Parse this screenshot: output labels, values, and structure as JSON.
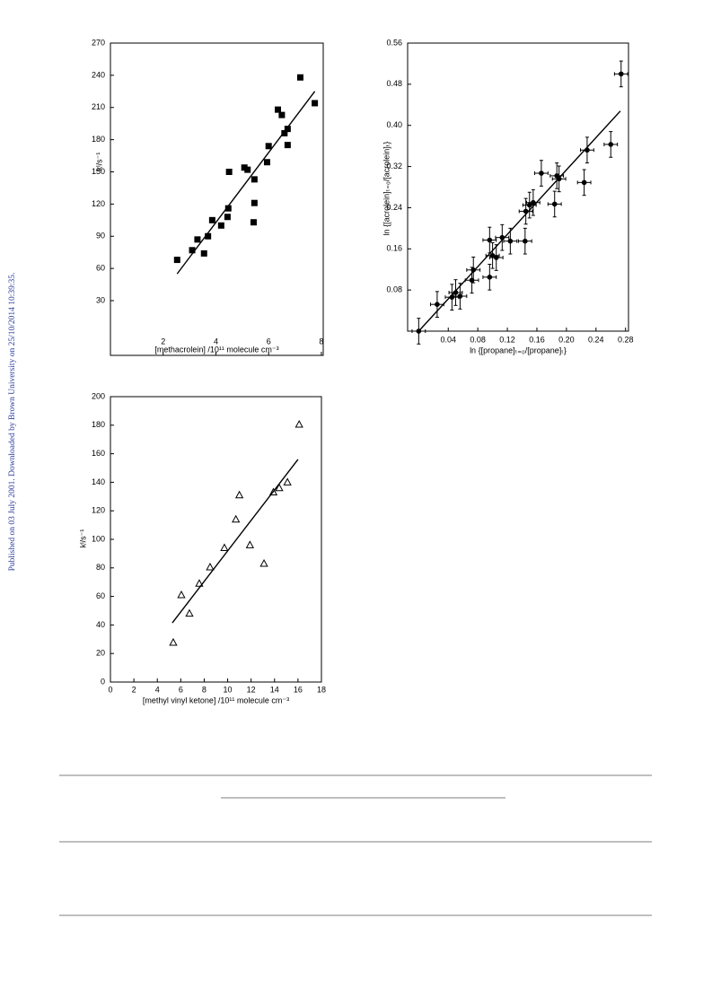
{
  "side_note": "Published on 03 July 2001. Downloaded by Brown University on 25/10/2014 10:39:35.",
  "chart_data": [
    {
      "type": "scatter",
      "marker": "square",
      "color": "#000000",
      "x_label": "[methacrolein] /10¹¹ molecule cm⁻³",
      "y_label": "kᴵ/s⁻¹",
      "x": [
        2.53,
        3.1,
        3.3,
        3.55,
        3.7,
        3.86,
        4.2,
        4.44,
        4.47,
        4.5,
        5.08,
        5.2,
        5.46,
        5.46,
        5.43,
        5.94,
        6.0,
        6.35,
        6.5,
        6.6,
        6.72,
        6.72,
        7.2,
        7.75
      ],
      "values": [
        68,
        77,
        87,
        74,
        90,
        105,
        100,
        108,
        116,
        150,
        154,
        152,
        143,
        121,
        103,
        159,
        174,
        208,
        203,
        186,
        190,
        175,
        238,
        214
      ],
      "fit": {
        "x": [
          2.53,
          7.75
        ],
        "y": [
          55,
          225
        ]
      },
      "xlim": [
        0,
        8.07
      ],
      "ylim": [
        -21,
        270
      ],
      "xticks": [
        2,
        4,
        6,
        8
      ],
      "yticks": [
        30,
        60,
        90,
        120,
        150,
        180,
        210,
        240,
        270
      ]
    },
    {
      "type": "scatter",
      "marker": "circle",
      "color": "#000000",
      "x_label": "ln {[propane]ₜ₌₀/[propane]ₜ}",
      "y_label": "ln {[acrolein]ₜ₌₀/[acrolein]ₜ}",
      "x": [
        0,
        0.025,
        0.045,
        0.05,
        0.056,
        0.072,
        0.074,
        0.096,
        0.096,
        0.1,
        0.105,
        0.113,
        0.124,
        0.144,
        0.145,
        0.15,
        0.155,
        0.166,
        0.184,
        0.187,
        0.19,
        0.224,
        0.228,
        0.26,
        0.274
      ],
      "values": [
        0,
        0.052,
        0.066,
        0.075,
        0.068,
        0.099,
        0.119,
        0.105,
        0.177,
        0.147,
        0.143,
        0.182,
        0.175,
        0.175,
        0.233,
        0.245,
        0.25,
        0.307,
        0.247,
        0.302,
        0.296,
        0.289,
        0.352,
        0.363,
        0.5
      ],
      "xerr": 0.009,
      "yerr": 0.025,
      "fit": {
        "x": [
          0,
          0.273
        ],
        "y": [
          0,
          0.428
        ]
      },
      "xlim": [
        -0.015,
        0.284
      ],
      "ylim": [
        0,
        0.56
      ],
      "xticks": [
        0.04,
        0.08,
        0.12,
        0.16,
        {
          "value": 0.2,
          "label": "0.20"
        },
        0.24,
        0.28
      ],
      "yticks": [
        0.08,
        0.16,
        0.24,
        0.32,
        {
          "value": 0.4,
          "label": "0.40"
        },
        0.48,
        0.56
      ]
    },
    {
      "type": "scatter",
      "marker": "triangle",
      "color": "#000000",
      "x_label": "[methyl vinyl ketone] /10¹¹ molecule cm⁻³",
      "y_label": "kᴵ/s⁻¹",
      "x": [
        5.36,
        6.05,
        6.74,
        7.58,
        8.5,
        9.72,
        10.7,
        11.0,
        11.9,
        13.1,
        13.9,
        14.4,
        15.1,
        16.1
      ],
      "values": [
        27.7,
        61,
        48,
        69,
        80.5,
        94,
        114,
        131,
        96,
        83,
        133,
        136,
        140,
        180.5
      ],
      "fit": {
        "x": [
          5.28,
          16.0
        ],
        "y": [
          41.5,
          156
        ]
      },
      "xlim": [
        0,
        18
      ],
      "ylim": [
        0,
        200
      ],
      "xticks": [
        0,
        2,
        4,
        6,
        8,
        10,
        12,
        14,
        16,
        18
      ],
      "yticks": [
        0,
        20,
        40,
        60,
        80,
        100,
        120,
        140,
        160,
        180,
        200
      ]
    }
  ]
}
